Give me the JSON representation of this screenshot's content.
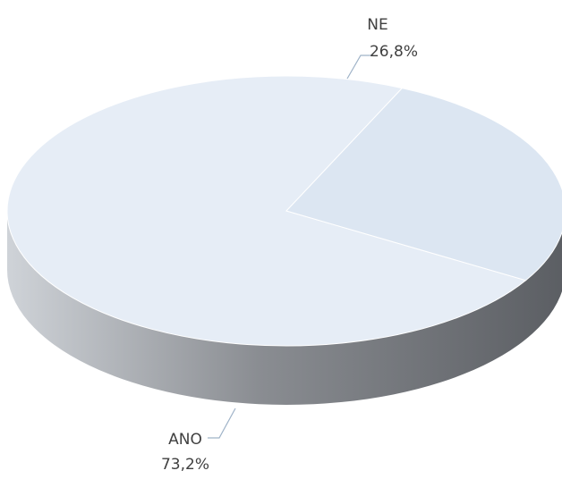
{
  "chart_data": {
    "type": "pie",
    "style": "3d",
    "title": "",
    "slices": [
      {
        "category": "NE",
        "value": 26.8,
        "label": "26,8%",
        "color": "#dce6f2"
      },
      {
        "category": "ANO",
        "value": 73.2,
        "label": "73,2%",
        "color": "#e6edf6"
      }
    ],
    "side_gradient": [
      "#cfd3d8",
      "#8a8d92",
      "#5b5e63"
    ],
    "leader_color": "#9fb3c8",
    "legend": "none"
  }
}
